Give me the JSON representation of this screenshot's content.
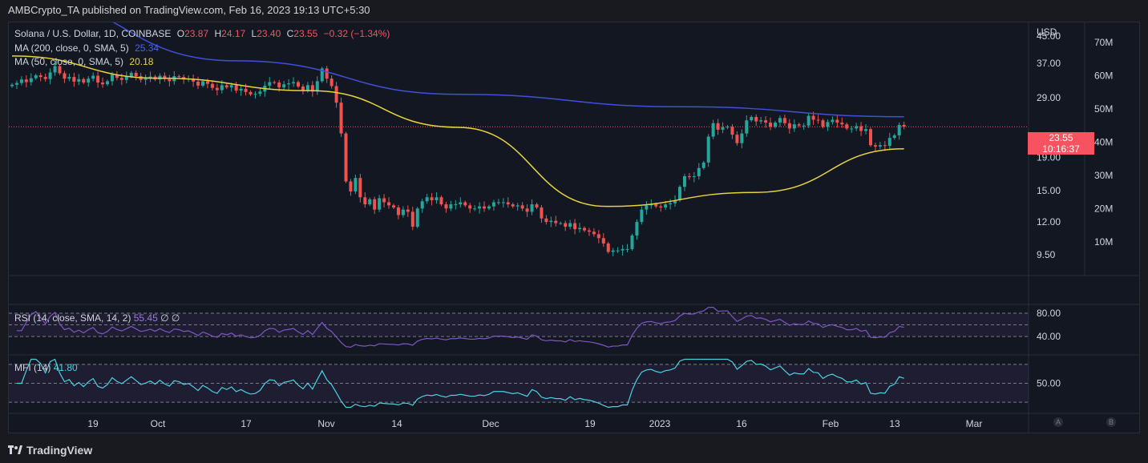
{
  "header": {
    "publisher": "AMBCrypto_TA published on TradingView.com, Feb 16, 2023 19:13 UTC+5:30"
  },
  "legend": {
    "symbol": "Solana / U.S. Dollar, 1D, COINBASE",
    "o_label": "O",
    "o_value": "23.87",
    "h_label": "H",
    "h_value": "24.17",
    "l_label": "L",
    "l_value": "23.40",
    "c_label": "C",
    "c_value": "23.55",
    "change": "−0.32 (−1.34%)",
    "ma200_label": "MA (200, close, 0, SMA, 5)",
    "ma200_value": "25.34",
    "ma50_label": "MA (50, close, 0, SMA, 5)",
    "ma50_value": "20.18"
  },
  "price_tag": {
    "price": "23.55",
    "countdown": "10:16:37"
  },
  "rsi": {
    "label": "RSI (14, close, SMA, 14, 2)",
    "value": "55.45",
    "extra1": "∅",
    "extra2": "∅"
  },
  "mfi": {
    "label": "MFI (14)",
    "value": "41.80"
  },
  "footer": {
    "brand": "TradingView"
  },
  "buttons": {
    "a": "A",
    "b": "B"
  },
  "colors": {
    "up": "#26a69a",
    "down": "#ef5350",
    "ma200": "#3f51d8",
    "ma50": "#e8d33f",
    "rsi": "#7e57c2",
    "mfi": "#4dd0e1",
    "bg": "#131722"
  },
  "chart_data": {
    "type": "candlestick",
    "x_ticks": [
      "19",
      "Oct",
      "17",
      "Nov",
      "14",
      "Dec",
      "19",
      "2023",
      "16",
      "Feb",
      "13",
      "Mar"
    ],
    "price_axis": {
      "label": "USD",
      "ticks": [
        45.0,
        37.0,
        29.0,
        19.0,
        15.0,
        12.0,
        9.5
      ],
      "scale": "log"
    },
    "volume_axis": {
      "ticks": [
        "70M",
        "60M",
        "50M",
        "40M",
        "30M",
        "20M",
        "10M"
      ]
    },
    "rsi_axis": {
      "ticks": [
        80.0,
        40.0
      ]
    },
    "mfi_axis": {
      "ticks": [
        50.0
      ]
    },
    "closes": [
      31.8,
      32.2,
      33.0,
      32.4,
      33.3,
      34.0,
      33.6,
      33.1,
      34.7,
      36.3,
      34.5,
      33.2,
      33.6,
      32.5,
      33.1,
      32.3,
      33.2,
      33.9,
      32.3,
      31.9,
      32.6,
      34.2,
      33.4,
      32.9,
      33.7,
      34.6,
      33.8,
      32.9,
      33.2,
      33.7,
      33.0,
      33.9,
      33.1,
      32.6,
      33.8,
      33.6,
      33.0,
      33.2,
      32.5,
      31.6,
      32.6,
      32.0,
      31.1,
      30.6,
      31.7,
      31.2,
      31.7,
      30.5,
      30.9,
      30.2,
      29.7,
      29.8,
      30.3,
      31.6,
      32.4,
      32.3,
      31.2,
      31.9,
      32.1,
      32.4,
      31.4,
      30.6,
      31.7,
      30.3,
      32.6,
      35.7,
      33.2,
      31.5,
      28.0,
      22.5,
      16.0,
      14.9,
      16.4,
      14.3,
      13.6,
      14.1,
      13.1,
      14.2,
      13.8,
      13.5,
      13.3,
      12.6,
      13.1,
      12.9,
      11.6,
      13.2,
      13.9,
      14.3,
      14.0,
      14.3,
      13.6,
      13.2,
      13.6,
      13.6,
      13.8,
      13.5,
      13.2,
      13.2,
      13.4,
      13.2,
      13.4,
      13.8,
      13.8,
      13.8,
      13.6,
      13.4,
      13.5,
      13.2,
      12.9,
      13.6,
      13.3,
      12.3,
      12.0,
      12.1,
      11.9,
      11.9,
      11.6,
      11.9,
      11.4,
      11.5,
      11.3,
      11.2,
      11.0,
      10.7,
      10.3,
      9.7,
      9.8,
      9.8,
      9.9,
      9.9,
      10.9,
      12.0,
      13.1,
      13.5,
      13.6,
      13.4,
      13.3,
      13.6,
      13.7,
      14.0,
      15.4,
      16.6,
      16.5,
      16.6,
      17.6,
      18.3,
      22.0,
      24.2,
      23.1,
      23.5,
      23.6,
      22.3,
      21.0,
      22.5,
      24.7,
      25.3,
      24.5,
      24.7,
      24.3,
      23.6,
      24.3,
      25.1,
      24.2,
      23.3,
      24.0,
      23.8,
      23.8,
      25.5,
      24.8,
      24.7,
      23.6,
      24.4,
      24.8,
      24.3,
      24.0,
      23.3,
      23.3,
      23.7,
      22.9,
      23.2,
      20.7,
      20.5,
      20.7,
      20.6,
      21.8,
      22.2,
      23.9,
      23.6
    ],
    "ma200": [
      60.0,
      37.7,
      29.7,
      27.2,
      25.34
    ],
    "ma50": [
      39.0,
      33.3,
      30.5,
      23.5,
      13.4,
      14.8,
      20.18
    ]
  }
}
